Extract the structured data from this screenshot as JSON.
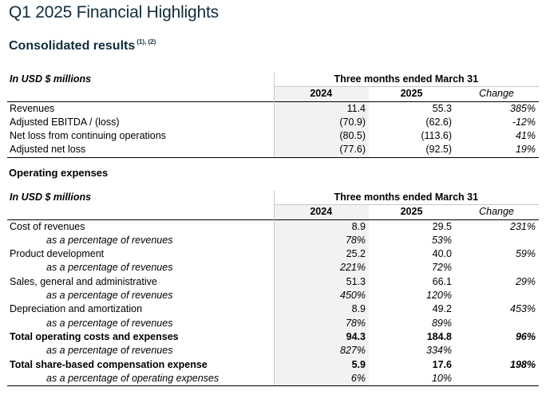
{
  "page": {
    "title": "Q1 2025 Financial Highlights",
    "subtitle": "Consolidated results",
    "subtitle_footnote": "(1), (2)",
    "section2_heading": "Operating expenses"
  },
  "consolidated": {
    "unit_label": "In USD $ millions",
    "period_header": "Three months ended March 31",
    "col_2024": "2024",
    "col_2025": "2025",
    "col_change": "Change",
    "rows": [
      {
        "label": "Revenues",
        "v2024": "11.4",
        "v2025": "55.3",
        "change": "385%"
      },
      {
        "label": "Adjusted EBITDA / (loss)",
        "v2024": "(70.9)",
        "v2025": "(62.6)",
        "change": "-12%"
      },
      {
        "label": "Net loss from continuing operations",
        "v2024": "(80.5)",
        "v2025": "(113.6)",
        "change": "41%"
      },
      {
        "label": "Adjusted net loss",
        "v2024": "(77.6)",
        "v2025": "(92.5)",
        "change": "19%"
      }
    ]
  },
  "opex": {
    "unit_label": "In USD $ millions",
    "period_header": "Three months ended March 31",
    "col_2024": "2024",
    "col_2025": "2025",
    "col_change": "Change",
    "rows": [
      {
        "label": "Cost of revenues",
        "v2024": "8.9",
        "v2025": "29.5",
        "change": "231%"
      },
      {
        "label": "as a percentage of revenues",
        "v2024": "78%",
        "v2025": "53%"
      },
      {
        "label": "Product development",
        "v2024": "25.2",
        "v2025": "40.0",
        "change": "59%"
      },
      {
        "label": "as a percentage of revenues",
        "v2024": "221%",
        "v2025": "72%"
      },
      {
        "label": "Sales, general and administrative",
        "v2024": "51.3",
        "v2025": "66.1",
        "change": "29%"
      },
      {
        "label": "as a percentage of revenues",
        "v2024": "450%",
        "v2025": "120%"
      },
      {
        "label": "Depreciation and amortization",
        "v2024": "8.9",
        "v2025": "49.2",
        "change": "453%"
      },
      {
        "label": "as a percentage of revenues",
        "v2024": "78%",
        "v2025": "89%"
      },
      {
        "label": "Total operating costs and expenses",
        "v2024": "94.3",
        "v2025": "184.8",
        "change": "96%"
      },
      {
        "label": "as a percentage of revenues",
        "v2024": "827%",
        "v2025": "334%"
      },
      {
        "label": "Total share-based compensation expense",
        "v2024": "5.9",
        "v2025": "17.6",
        "change": "198%"
      },
      {
        "label": "as a percentage of operating expenses",
        "v2024": "6%",
        "v2025": "10%"
      }
    ]
  }
}
